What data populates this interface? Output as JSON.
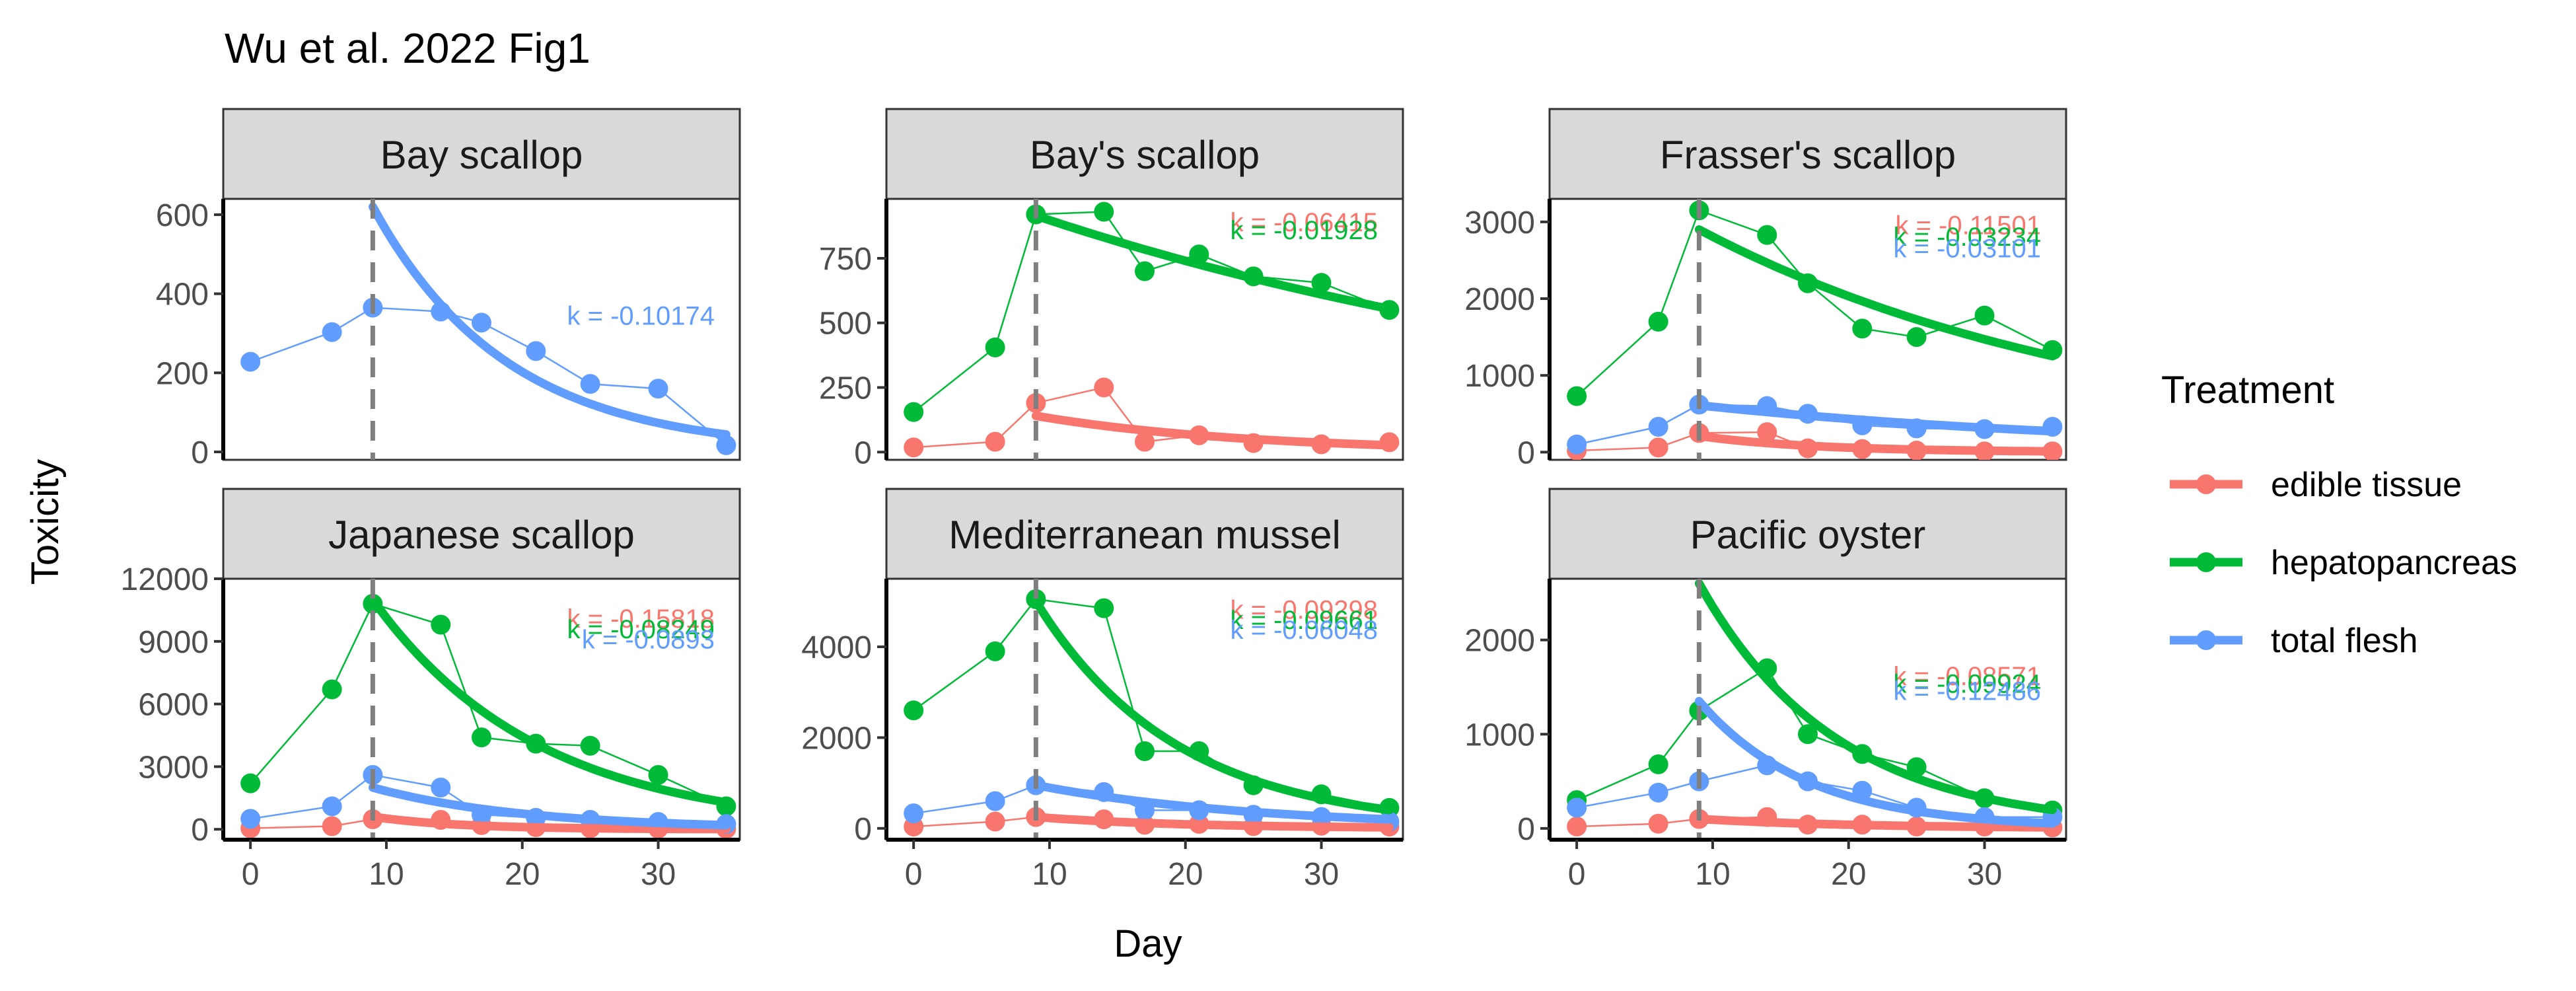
{
  "title": "Wu et al. 2022 Fig1",
  "xlabel": "Day",
  "ylabel": "Toxicity",
  "legend": {
    "title": "Treatment",
    "placement": "right",
    "entries": [
      {
        "key": "edible",
        "label": "edible tissue",
        "color": "#F8766D"
      },
      {
        "key": "hepato",
        "label": "hepatopancreas",
        "color": "#00BA38"
      },
      {
        "key": "total",
        "label": "total flesh",
        "color": "#619CFF"
      }
    ]
  },
  "chart_data": {
    "type": "line",
    "title": "Wu et al. 2022 Fig1",
    "xlabel": "Day",
    "ylabel": "Toxicity",
    "xlim": [
      -2,
      36
    ],
    "xticks": [
      0,
      10,
      20,
      30
    ],
    "vline_x": 9,
    "panels": [
      {
        "name": "Bay scallop",
        "ylim": [
          -20,
          640
        ],
        "yticks": [
          0,
          200,
          400,
          600
        ],
        "annotations": [
          {
            "series": "total",
            "text": "k = -0.10174",
            "y": 345
          }
        ],
        "series": [
          {
            "key": "total",
            "x": [
              0,
              6,
              9,
              14,
              17,
              21,
              25,
              30,
              35
            ],
            "y": [
              228,
              303,
              365,
              355,
              327,
              255,
              172,
              160,
              17
            ],
            "fit": {
              "a": 620,
              "k": -0.10174
            }
          }
        ]
      },
      {
        "name": "Bay's scallop",
        "ylim": [
          -30,
          980
        ],
        "yticks": [
          0,
          250,
          500,
          750
        ],
        "annotations": [
          {
            "series": "edible",
            "text": "k = -0.06415",
            "y": 890
          },
          {
            "series": "hepato",
            "text": "k = -0.01928",
            "y": 860
          }
        ],
        "series": [
          {
            "key": "edible",
            "x": [
              0,
              6,
              9,
              14,
              17,
              21,
              25,
              30,
              35
            ],
            "y": [
              18,
              40,
              190,
              250,
              40,
              65,
              35,
              30,
              38
            ],
            "fit": {
              "a": 140,
              "k": -0.06415
            }
          },
          {
            "key": "hepato",
            "x": [
              0,
              6,
              9,
              14,
              17,
              21,
              25,
              30,
              35
            ],
            "y": [
              155,
              405,
              920,
              930,
              700,
              765,
              680,
              655,
              550
            ],
            "fit": {
              "a": 915,
              "k": -0.01928
            }
          }
        ]
      },
      {
        "name": "Frasser's scallop",
        "ylim": [
          -100,
          3300
        ],
        "yticks": [
          0,
          1000,
          2000,
          3000
        ],
        "annotations": [
          {
            "series": "edible",
            "text": "k = -0.11501",
            "y": 2960
          },
          {
            "series": "hepato",
            "text": "k = -0.03234",
            "y": 2810
          },
          {
            "series": "total",
            "text": "k = -0.03101",
            "y": 2660
          }
        ],
        "series": [
          {
            "key": "edible",
            "x": [
              0,
              6,
              9,
              14,
              17,
              21,
              25,
              30,
              35
            ],
            "y": [
              20,
              60,
              250,
              260,
              50,
              40,
              20,
              10,
              10
            ],
            "fit": {
              "a": 210,
              "k": -0.11501
            }
          },
          {
            "key": "hepato",
            "x": [
              0,
              6,
              9,
              14,
              17,
              21,
              25,
              30,
              35
            ],
            "y": [
              730,
              1700,
              3150,
              2830,
              2200,
              1610,
              1500,
              1780,
              1330
            ],
            "fit": {
              "a": 2900,
              "k": -0.03234
            }
          },
          {
            "key": "total",
            "x": [
              0,
              6,
              9,
              14,
              17,
              21,
              25,
              30,
              35
            ],
            "y": [
              100,
              330,
              620,
              600,
              500,
              350,
              310,
              300,
              330
            ],
            "fit": {
              "a": 610,
              "k": -0.03101
            }
          }
        ]
      },
      {
        "name": "Japanese scallop",
        "ylim": [
          -500,
          12000
        ],
        "yticks": [
          0,
          3000,
          6000,
          9000,
          12000
        ],
        "annotations": [
          {
            "series": "edible",
            "text": "k = -0.15818",
            "y": 10100
          },
          {
            "series": "hepato",
            "text": "k = -0.08249",
            "y": 9600
          },
          {
            "series": "total",
            "text": "k = -0.0893",
            "y": 9100
          }
        ],
        "series": [
          {
            "key": "edible",
            "x": [
              0,
              6,
              9,
              14,
              17,
              21,
              25,
              30,
              35
            ],
            "y": [
              50,
              150,
              480,
              450,
              200,
              100,
              50,
              30,
              20
            ],
            "fit": {
              "a": 600,
              "k": -0.15818
            }
          },
          {
            "key": "hepato",
            "x": [
              0,
              6,
              9,
              14,
              17,
              21,
              25,
              30,
              35
            ],
            "y": [
              2200,
              6700,
              10800,
              9800,
              4400,
              4100,
              4000,
              2600,
              1100
            ],
            "fit": {
              "a": 11000,
              "k": -0.08249
            }
          },
          {
            "key": "total",
            "x": [
              0,
              6,
              9,
              14,
              17,
              21,
              25,
              30,
              35
            ],
            "y": [
              500,
              1100,
              2600,
              2000,
              700,
              550,
              450,
              350,
              250
            ],
            "fit": {
              "a": 2000,
              "k": -0.0893
            }
          }
        ]
      },
      {
        "name": "Mediterranean mussel",
        "ylim": [
          -250,
          5500
        ],
        "yticks": [
          0,
          2000,
          4000
        ],
        "annotations": [
          {
            "series": "edible",
            "text": "k = -0.09298",
            "y": 4820
          },
          {
            "series": "hepato",
            "text": "k = -0.09661",
            "y": 4600
          },
          {
            "series": "total",
            "text": "k = -0.06048",
            "y": 4380
          }
        ],
        "series": [
          {
            "key": "edible",
            "x": [
              0,
              6,
              9,
              14,
              17,
              21,
              25,
              30,
              35
            ],
            "y": [
              40,
              150,
              250,
              200,
              80,
              100,
              50,
              60,
              40
            ],
            "fit": {
              "a": 250,
              "k": -0.09298
            }
          },
          {
            "key": "hepato",
            "x": [
              0,
              6,
              9,
              14,
              17,
              21,
              25,
              30,
              35
            ],
            "y": [
              2600,
              3900,
              5050,
              4850,
              1700,
              1700,
              950,
              750,
              450
            ],
            "fit": {
              "a": 5000,
              "k": -0.09661
            }
          },
          {
            "key": "total",
            "x": [
              0,
              6,
              9,
              14,
              17,
              21,
              25,
              30,
              35
            ],
            "y": [
              330,
              600,
              950,
              800,
              400,
              400,
              300,
              250,
              150
            ],
            "fit": {
              "a": 950,
              "k": -0.06048
            }
          }
        ]
      },
      {
        "name": "Pacific oyster",
        "ylim": [
          -120,
          2650
        ],
        "yticks": [
          0,
          1000,
          2000
        ],
        "annotations": [
          {
            "series": "edible",
            "text": "k = -0.08571",
            "y": 1620
          },
          {
            "series": "hepato",
            "text": "k = -0.09924",
            "y": 1540
          },
          {
            "series": "total",
            "text": "k = -0.12486",
            "y": 1460
          }
        ],
        "series": [
          {
            "key": "edible",
            "x": [
              0,
              6,
              9,
              14,
              17,
              21,
              25,
              30,
              35
            ],
            "y": [
              20,
              50,
              100,
              120,
              40,
              40,
              20,
              20,
              10
            ],
            "fit": {
              "a": 100,
              "k": -0.08571
            }
          },
          {
            "key": "hepato",
            "x": [
              0,
              6,
              9,
              14,
              17,
              21,
              25,
              30,
              35
            ],
            "y": [
              300,
              680,
              1250,
              1700,
              1000,
              790,
              650,
              320,
              190
            ],
            "fit": {
              "a": 2600,
              "k": -0.09924
            }
          },
          {
            "key": "total",
            "x": [
              0,
              6,
              9,
              14,
              17,
              21,
              25,
              30,
              35
            ],
            "y": [
              220,
              380,
              500,
              670,
              500,
              400,
              220,
              120,
              120
            ],
            "fit": {
              "a": 1350,
              "k": -0.12486
            }
          }
        ]
      }
    ]
  }
}
